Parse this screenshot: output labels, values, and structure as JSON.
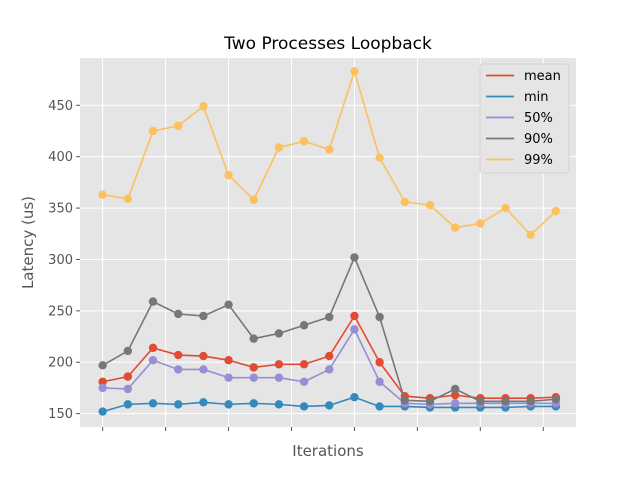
{
  "chart_data": {
    "type": "line",
    "title": "Two Processes Loopback",
    "xlabel": "Iterations",
    "ylabel": "Latency (us)",
    "x": [
      0,
      1,
      2,
      3,
      4,
      5,
      6,
      7,
      8,
      9,
      10,
      11,
      12,
      13,
      14,
      15,
      16,
      17,
      18
    ],
    "xlim": [
      -0.9,
      18.8
    ],
    "ylim": [
      137,
      496
    ],
    "yticks": [
      150,
      200,
      250,
      300,
      350,
      400,
      450
    ],
    "xticks_unlabeled": [
      0,
      2.5,
      5,
      7.5,
      10,
      12.5,
      15,
      17.5
    ],
    "grid": true,
    "legend_position": "top-right",
    "series": [
      {
        "name": "mean",
        "color": "#E24A33",
        "values": [
          181,
          186,
          214,
          207,
          206,
          202,
          195,
          198,
          198,
          206,
          245,
          200,
          167,
          165,
          168,
          165,
          165,
          165,
          166
        ]
      },
      {
        "name": "min",
        "color": "#348ABD",
        "values": [
          152,
          159,
          160,
          159,
          161,
          159,
          160,
          159,
          157,
          158,
          166,
          157,
          157,
          156,
          156,
          156,
          156,
          157,
          157
        ]
      },
      {
        "name": "50%",
        "color": "#988ED5",
        "values": [
          175,
          174,
          202,
          193,
          193,
          185,
          185,
          185,
          181,
          193,
          232,
          181,
          160,
          159,
          160,
          160,
          160,
          160,
          160
        ]
      },
      {
        "name": "90%",
        "color": "#777777",
        "values": [
          197,
          211,
          259,
          247,
          245,
          256,
          223,
          228,
          236,
          244,
          302,
          244,
          163,
          162,
          174,
          162,
          162,
          162,
          164
        ]
      },
      {
        "name": "99%",
        "color": "#FBC15E",
        "values": [
          363,
          359,
          425,
          430,
          449,
          382,
          358,
          409,
          415,
          407,
          483,
          399,
          356,
          353,
          331,
          335,
          350,
          324,
          347
        ]
      }
    ]
  }
}
